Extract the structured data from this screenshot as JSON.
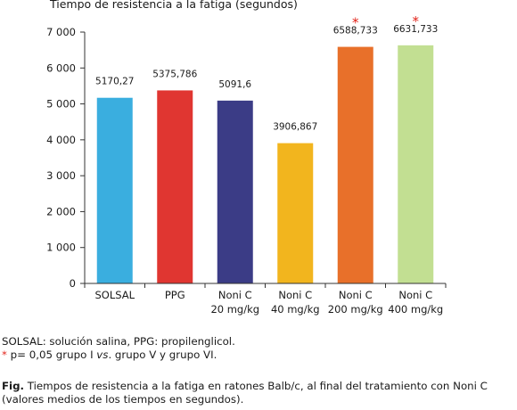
{
  "chart_data": {
    "type": "bar",
    "ylabel": "Tiempo de resistencia a la fatiga (segundos)",
    "ylim": [
      0,
      7000
    ],
    "yticks": [
      "0",
      "1 000",
      "2 000",
      "3 000",
      "4 000",
      "5 000",
      "6 000",
      "7 000"
    ],
    "grid": false,
    "categories": [
      {
        "line1": "SOLSAL",
        "line2": ""
      },
      {
        "line1": "PPG",
        "line2": ""
      },
      {
        "line1": "Noni C",
        "line2": "20 mg/kg"
      },
      {
        "line1": "Noni C",
        "line2": "40 mg/kg"
      },
      {
        "line1": "Noni C",
        "line2": "200 mg/kg"
      },
      {
        "line1": "Noni C",
        "line2": "400 mg/kg"
      }
    ],
    "values": [
      5170.27,
      5375.786,
      5091.6,
      3906.867,
      6588.733,
      6631.733
    ],
    "data_labels": [
      "5170,27",
      "5375,786",
      "5091,6",
      "3906,867",
      "6588,733",
      "6631,733"
    ],
    "colors": [
      "#3aaedf",
      "#e03631",
      "#3b3c86",
      "#f2b51e",
      "#e8702a",
      "#c2df92"
    ],
    "significance_marker": "*",
    "significant": [
      false,
      false,
      false,
      false,
      true,
      true
    ]
  },
  "notes": {
    "line1": "SOLSAL: solución salina, PPG: propilenglicol.",
    "line2_star": "*",
    "line2_text": " p= 0,05 grupo I ",
    "line2_vs": "vs",
    "line2_rest": ". grupo V y grupo VI."
  },
  "caption": {
    "label": "Fig.",
    "text": " Tiempos de resistencia a la fatiga en ratones Balb/c, al final del tratamiento con Noni C (valores medios de los tiempos en segundos)."
  }
}
